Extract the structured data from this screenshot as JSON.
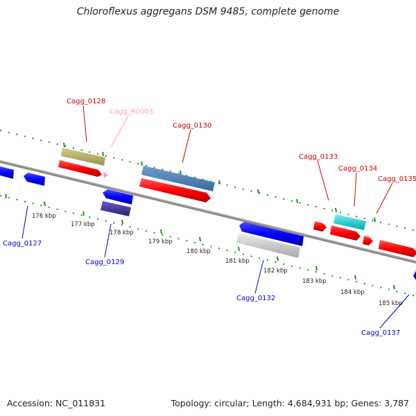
{
  "header": {
    "title": "Chloroflexus aggregans DSM 9485, complete genome"
  },
  "footer": {
    "accession": "Accession: NC_011831",
    "summary": "Topology: circular; Length: 4,684,931 bp; Genes: 3,787"
  },
  "colors": {
    "forward": "#ff0000",
    "reverse": "#0000ff",
    "rna": "#ff99cc",
    "tick": "#228b22",
    "backbone": "#888888"
  },
  "ticks": [
    "176 kbp",
    "177 kbp",
    "178 kbp",
    "179 kbp",
    "180 kbp",
    "181 kbp",
    "182 kbp",
    "183 kbp",
    "184 kbp",
    "185 kbp"
  ],
  "labels": {
    "g0128": "Cagg_0128",
    "r0003": "Cagg_R0003",
    "g0130": "Cagg_0130",
    "g0133": "Cagg_0133",
    "g0134": "Cagg_0134",
    "g0135": "Cagg_0135",
    "g0127": "Cagg_0127",
    "g0129": "Cagg_0129",
    "g0132": "Cagg_0132",
    "g0137": "Cagg_0137"
  }
}
